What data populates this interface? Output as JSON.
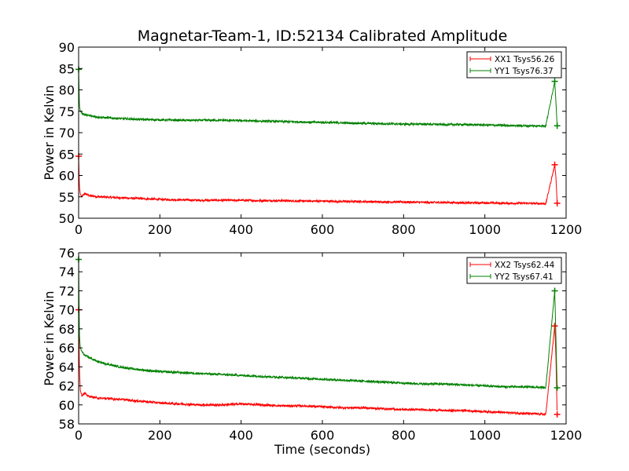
{
  "title": "Magnetar-Team-1, ID:52134 Calibrated Amplitude",
  "chart_data": [
    {
      "type": "line",
      "title": "Magnetar-Team-1, ID:52134 Calibrated Amplitude",
      "xlabel": "",
      "ylabel": "Power in Kelvin",
      "xlim": [
        0,
        1200
      ],
      "ylim": [
        50,
        90
      ],
      "xticks": [
        0,
        200,
        400,
        600,
        800,
        1000,
        1200
      ],
      "yticks": [
        50,
        55,
        60,
        65,
        70,
        75,
        80,
        85,
        90
      ],
      "grid": false,
      "legend_position": "top-right",
      "series": [
        {
          "name": "XX1 Tsys56.26",
          "color": "#ff0000",
          "x": [
            0,
            2,
            4,
            8,
            15,
            25,
            50,
            100,
            150,
            200,
            250,
            300,
            350,
            400,
            450,
            500,
            550,
            600,
            650,
            700,
            750,
            800,
            850,
            900,
            950,
            1000,
            1050,
            1100,
            1150,
            1172,
            1175,
            1178
          ],
          "y": [
            64.5,
            57.5,
            55.6,
            55.0,
            55.8,
            55.3,
            55.0,
            54.8,
            54.6,
            54.4,
            54.3,
            54.2,
            54.2,
            54.2,
            54.1,
            54.1,
            54.0,
            54.0,
            53.9,
            53.9,
            53.8,
            53.8,
            53.7,
            53.7,
            53.6,
            53.6,
            53.5,
            53.5,
            53.4,
            62.5,
            59.5,
            53.5
          ]
        },
        {
          "name": "YY1 Tsys76.37",
          "color": "#008000",
          "x": [
            0,
            2,
            4,
            8,
            15,
            25,
            50,
            100,
            150,
            200,
            250,
            300,
            350,
            400,
            450,
            500,
            550,
            600,
            650,
            700,
            750,
            800,
            850,
            900,
            950,
            1000,
            1050,
            1100,
            1150,
            1172,
            1175,
            1178
          ],
          "y": [
            84.8,
            76.5,
            75.0,
            74.6,
            74.2,
            74.0,
            73.6,
            73.3,
            73.1,
            73.0,
            72.9,
            72.9,
            72.9,
            72.8,
            72.7,
            72.6,
            72.5,
            72.4,
            72.3,
            72.2,
            72.1,
            72.0,
            72.0,
            71.9,
            71.9,
            71.8,
            71.7,
            71.6,
            71.6,
            82.0,
            77.0,
            71.6
          ]
        }
      ]
    },
    {
      "type": "line",
      "title": "",
      "xlabel": "Time (seconds)",
      "ylabel": "Power in Kelvin",
      "xlim": [
        0,
        1200
      ],
      "ylim": [
        58,
        76
      ],
      "xticks": [
        0,
        200,
        400,
        600,
        800,
        1000,
        1200
      ],
      "yticks": [
        58,
        60,
        62,
        64,
        66,
        68,
        70,
        72,
        74,
        76
      ],
      "grid": false,
      "legend_position": "top-right",
      "series": [
        {
          "name": "XX2 Tsys62.44",
          "color": "#ff0000",
          "x": [
            0,
            2,
            4,
            8,
            15,
            25,
            50,
            100,
            150,
            200,
            250,
            300,
            350,
            400,
            450,
            500,
            550,
            600,
            650,
            700,
            750,
            800,
            850,
            900,
            950,
            1000,
            1050,
            1100,
            1150,
            1172,
            1175,
            1178
          ],
          "y": [
            70.0,
            64.0,
            61.5,
            61.0,
            61.2,
            60.9,
            60.7,
            60.6,
            60.4,
            60.2,
            60.1,
            60.0,
            60.0,
            60.1,
            60.0,
            59.9,
            59.9,
            59.8,
            59.7,
            59.7,
            59.6,
            59.5,
            59.5,
            59.4,
            59.4,
            59.3,
            59.2,
            59.1,
            59.0,
            68.3,
            65.0,
            59.0
          ]
        },
        {
          "name": "YY2 Tsys67.41",
          "color": "#008000",
          "x": [
            0,
            2,
            4,
            8,
            15,
            25,
            50,
            100,
            150,
            200,
            250,
            300,
            350,
            400,
            450,
            500,
            550,
            600,
            650,
            700,
            750,
            800,
            850,
            900,
            950,
            1000,
            1050,
            1100,
            1150,
            1172,
            1175,
            1178
          ],
          "y": [
            75.3,
            67.5,
            66.0,
            65.6,
            65.2,
            65.0,
            64.5,
            64.0,
            63.7,
            63.5,
            63.4,
            63.3,
            63.2,
            63.1,
            63.0,
            62.9,
            62.8,
            62.7,
            62.6,
            62.5,
            62.4,
            62.3,
            62.2,
            62.2,
            62.1,
            62.0,
            61.9,
            61.9,
            61.8,
            72.0,
            67.0,
            61.8
          ]
        }
      ]
    }
  ]
}
